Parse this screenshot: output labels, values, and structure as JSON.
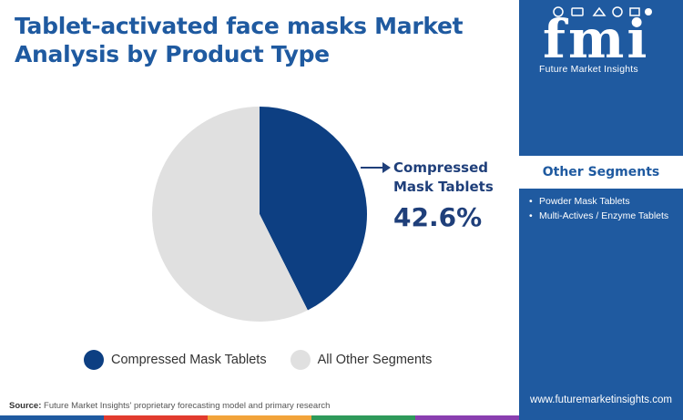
{
  "title": "Tablet-activated face masks Market Analysis by Product Type",
  "brand": {
    "logo_text": "fmi",
    "caption": "Future Market Insights",
    "website": "www.futuremarketinsights.com",
    "color": "#1f5aa0"
  },
  "sidebar": {
    "heading": "Other Segments",
    "items": [
      "Powder Mask Tablets",
      "Multi-Actives / Enzyme Tablets"
    ]
  },
  "chart_data": {
    "type": "pie",
    "title": "Tablet-activated face masks Market Analysis by Product Type",
    "slices": [
      {
        "label": "Compressed Mask Tablets",
        "value": 42.6,
        "color": "#0d3f82"
      },
      {
        "label": "All Other Segments",
        "value": 57.4,
        "color": "#e0e0e0"
      }
    ],
    "start_angle_deg": 0,
    "direction": "clockwise",
    "legend_position": "bottom",
    "annotation": {
      "label": "Compressed Mask Tablets",
      "value_text": "42.6%"
    }
  },
  "source": {
    "prefix": "Source:",
    "text": "Future Market Insights' proprietary forecasting model and primary research"
  },
  "bottom_bar_colors": [
    "#1f5aa0",
    "#e23b2e",
    "#f2a33a",
    "#2e9a5a",
    "#8a3fb0"
  ]
}
